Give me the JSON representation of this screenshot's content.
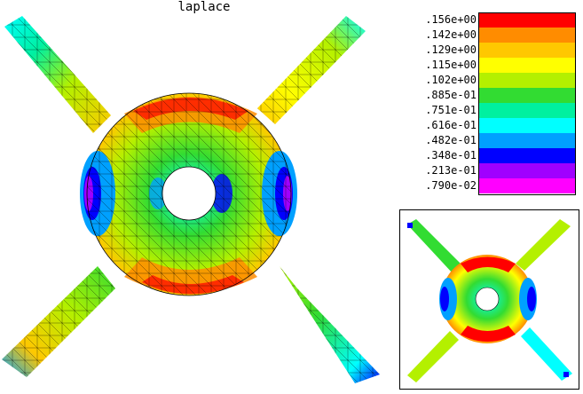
{
  "title": "laplace",
  "legend": {
    "entries": [
      {
        "label": ".156e+00",
        "color": "#ff0000"
      },
      {
        "label": ".142e+00",
        "color": "#ff8c00"
      },
      {
        "label": ".129e+00",
        "color": "#ffc800"
      },
      {
        "label": ".115e+00",
        "color": "#ffff00"
      },
      {
        "label": ".102e+00",
        "color": "#b4f000"
      },
      {
        "label": ".885e-01",
        "color": "#32dc32"
      },
      {
        "label": ".751e-01",
        "color": "#00f0a0"
      },
      {
        "label": ".616e-01",
        "color": "#00ffff"
      },
      {
        "label": ".482e-01",
        "color": "#00a0ff"
      },
      {
        "label": ".348e-01",
        "color": "#0000ff"
      },
      {
        "label": ".213e-01",
        "color": "#a000ff"
      },
      {
        "label": ".790e-02",
        "color": "#ff00ff"
      }
    ]
  }
}
